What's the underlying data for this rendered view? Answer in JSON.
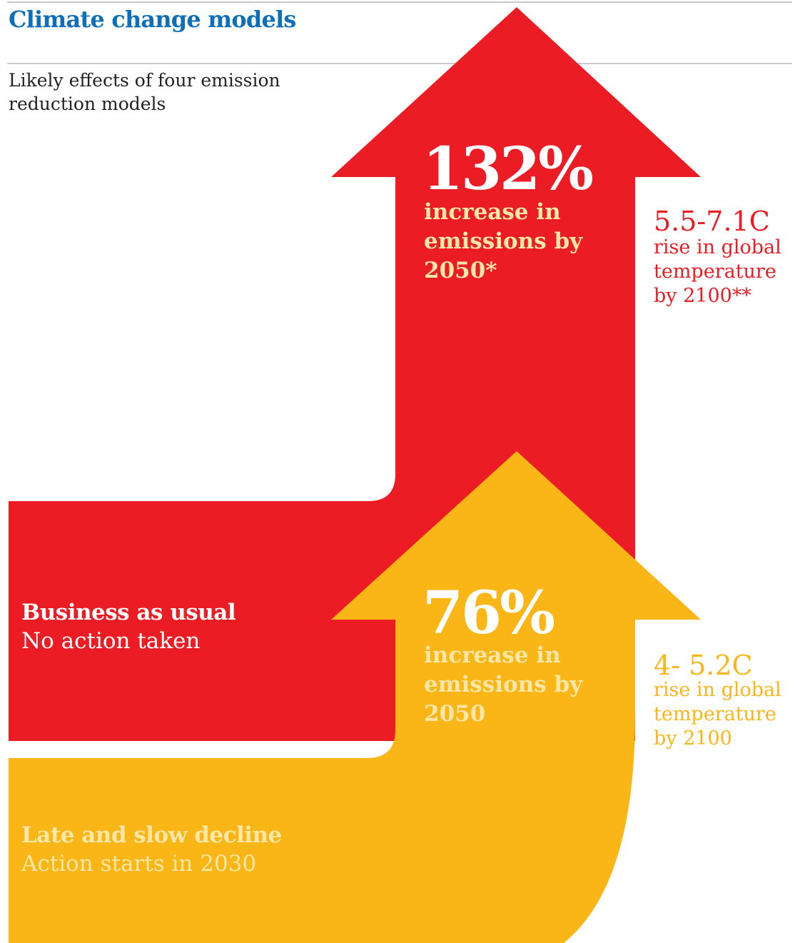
{
  "header": {
    "title": "Climate change models",
    "subtitle": "Likely effects of four emission reduction models"
  },
  "colors": {
    "title": "#0d6fb8",
    "business_as_usual": "#ec1c24",
    "late_and_slow_decline": "#f9b616"
  },
  "scenarios": [
    {
      "name": "Business as usual",
      "description": "No action taken",
      "emissions_change": "132%",
      "emissions_text": "increase in emissions by 2050*",
      "temperature_range": "5.5-7.1C",
      "temperature_text": "rise in global temperature by 2100**"
    },
    {
      "name": "Late and slow decline",
      "description": "Action starts in 2030",
      "emissions_change": "76%",
      "emissions_text": "increase in emissions by 2050",
      "temperature_range": "4- 5.2C",
      "temperature_text": "rise in global temperature by 2100"
    }
  ]
}
